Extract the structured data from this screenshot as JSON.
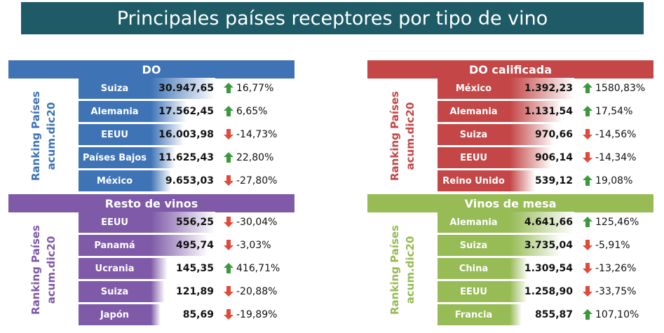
{
  "title": "Principales países receptores por tipo de vino",
  "colors": {
    "title_bg": "#1e5b66",
    "up": "#3a9a3a",
    "down": "#e04a3a"
  },
  "chart_data": [
    {
      "type": "bar",
      "title": "DO",
      "ylabel": [
        "Ranking Países",
        "acum.dic20"
      ],
      "color": "#3e73b6",
      "categories": [
        "Suiza",
        "Alemania",
        "EEUU",
        "Países Bajos",
        "México"
      ],
      "values": [
        30947.65,
        17562.45,
        16003.98,
        11625.43,
        9653.03
      ],
      "value_labels": [
        "30.947,65",
        "17.562,45",
        "16.003,98",
        "11.625,43",
        "9.653,03"
      ],
      "variation": [
        "16,77%",
        "6,65%",
        "-14,73%",
        "22,80%",
        "-27,80%"
      ],
      "trend": [
        "up",
        "up",
        "down",
        "up",
        "down"
      ]
    },
    {
      "type": "bar",
      "title": "DO calificada",
      "ylabel": [
        "Ranking Países",
        "acum.dic20"
      ],
      "color": "#c44647",
      "categories": [
        "México",
        "Alemania",
        "Suiza",
        "EEUU",
        "Reino Unido"
      ],
      "values": [
        1392.23,
        1131.54,
        970.66,
        906.14,
        539.12
      ],
      "value_labels": [
        "1.392,23",
        "1.131,54",
        "970,66",
        "906,14",
        "539,12"
      ],
      "variation": [
        "1580,83%",
        "17,54%",
        "-14,56%",
        "-14,34%",
        "19,08%"
      ],
      "trend": [
        "up",
        "up",
        "down",
        "down",
        "up"
      ]
    },
    {
      "type": "bar",
      "title": "Resto de vinos",
      "ylabel": [
        "Ranking Países",
        "acum.dic20"
      ],
      "color": "#7e5aa8",
      "categories": [
        "EEUU",
        "Panamá",
        "Ucrania",
        "Suiza",
        "Japón"
      ],
      "values": [
        556.25,
        495.74,
        145.35,
        121.89,
        85.69
      ],
      "value_labels": [
        "556,25",
        "495,74",
        "145,35",
        "121,89",
        "85,69"
      ],
      "variation": [
        "-30,04%",
        "-3,03%",
        "416,71%",
        "-20,88%",
        "-19,89%"
      ],
      "trend": [
        "down",
        "down",
        "up",
        "down",
        "down"
      ]
    },
    {
      "type": "bar",
      "title": "Vinos de mesa",
      "ylabel": [
        "Ranking Países",
        "acum.dic20"
      ],
      "color": "#97bb55",
      "categories": [
        "Alemania",
        "Suiza",
        "China",
        "EEUU",
        "Francia"
      ],
      "values": [
        4641.66,
        3735.04,
        1309.54,
        1258.9,
        855.87
      ],
      "value_labels": [
        "4.641,66",
        "3.735,04",
        "1.309,54",
        "1.258,90",
        "855,87"
      ],
      "variation": [
        "125,46%",
        "-5,91%",
        "-13,26%",
        "-33,75%",
        "107,10%"
      ],
      "trend": [
        "up",
        "down",
        "down",
        "down",
        "up"
      ]
    }
  ]
}
